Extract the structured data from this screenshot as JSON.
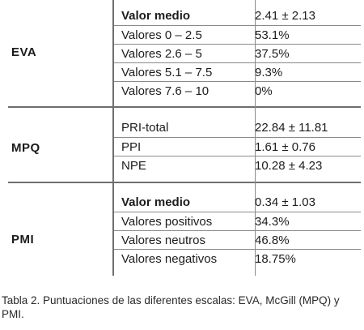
{
  "sections": [
    {
      "label": "EVA",
      "rows": [
        {
          "k": "Valor medio",
          "v": "2.41 ± 2.13",
          "bold": true
        },
        {
          "k": "Valores 0 – 2.5",
          "v": "53.1%"
        },
        {
          "k": "Valores 2.6 – 5",
          "v": "37.5%"
        },
        {
          "k": "Valores 5.1 – 7.5",
          "v": "9.3%"
        },
        {
          "k": "Valores 7.6 – 10",
          "v": "0%"
        }
      ]
    },
    {
      "label": "MPQ",
      "rows": [
        {
          "k": "PRI-total",
          "v": "22.84 ± 11.81"
        },
        {
          "k": "PPI",
          "v": "1.61 ± 0.76"
        },
        {
          "k": "NPE",
          "v": "10.28 ± 4.23"
        }
      ]
    },
    {
      "label": "PMI",
      "rows": [
        {
          "k": "Valor medio",
          "v": "0.34 ± 1.03",
          "bold": true
        },
        {
          "k": "Valores positivos",
          "v": "34.3%"
        },
        {
          "k": "Valores neutros",
          "v": "46.8%"
        },
        {
          "k": "Valores negativos",
          "v": "18.75%"
        }
      ]
    }
  ],
  "caption": "Tabla 2. Puntuaciones de las diferentes escalas: EVA, McGill (MPQ) y PMI."
}
